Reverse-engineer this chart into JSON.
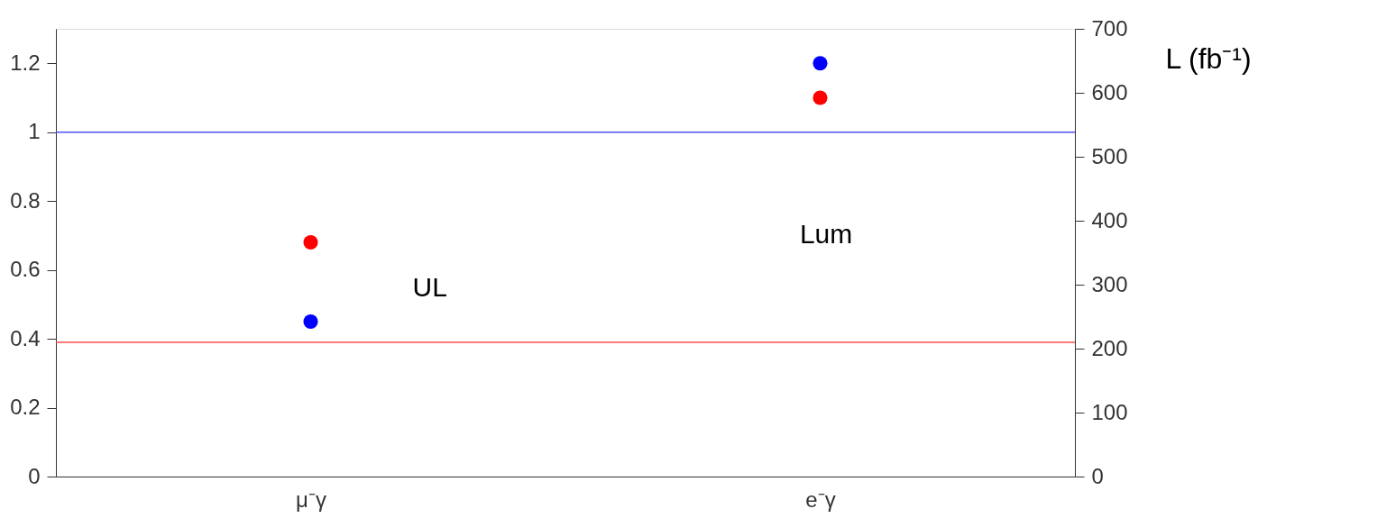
{
  "chart_data": {
    "type": "scatter",
    "categories": [
      "μ⁻γ",
      "e⁻γ"
    ],
    "series": [
      {
        "color": "#ff0000",
        "values": [
          0.68,
          1.1
        ]
      },
      {
        "color": "#0000ff",
        "values": [
          0.45,
          1.2
        ]
      }
    ],
    "marker": "circle",
    "ylim": [
      0,
      1.3
    ],
    "yticks": [
      0,
      0.2,
      0.4,
      0.6,
      0.8,
      1,
      1.2
    ],
    "y2label": "L (fb⁻¹)",
    "y2lim": [
      0,
      700
    ],
    "y2ticks": [
      0,
      100,
      200,
      300,
      400,
      500,
      600,
      700
    ],
    "ref_lines": [
      {
        "axis": "y",
        "value": 1.0,
        "color": "#5050ff"
      },
      {
        "axis": "y",
        "value": 0.39,
        "color": "#ff5050"
      }
    ],
    "annotations": [
      "UL",
      "Lum"
    ],
    "grid": false,
    "legend": false
  }
}
